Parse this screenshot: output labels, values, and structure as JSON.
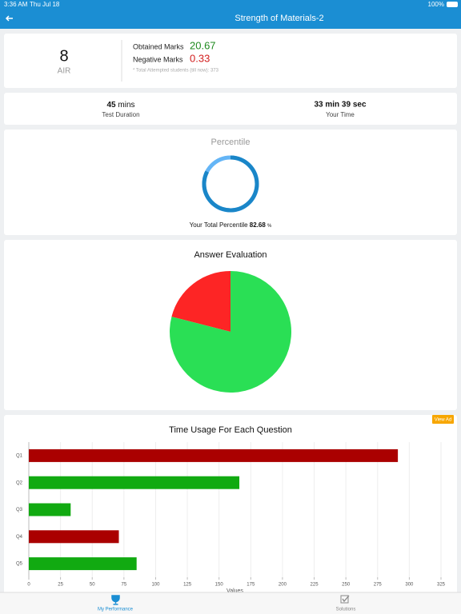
{
  "status_bar": {
    "time": "3:36 AM",
    "date": "Thu Jul 18",
    "battery": "100%"
  },
  "header": {
    "title": "Strength of Materials-2"
  },
  "score": {
    "rank": "8",
    "rank_label": "AIR",
    "obtained_label": "Obtained Marks",
    "obtained_value": "20.67",
    "negative_label": "Negative Marks",
    "negative_value": "0.33",
    "note": "* Total Attempted students (till now): 373"
  },
  "time": {
    "duration_value": "45",
    "duration_unit": "mins",
    "duration_label": "Test Duration",
    "your_time": "33 min 39 sec",
    "your_time_label": "Your Time"
  },
  "percentile": {
    "title": "Percentile",
    "label": "Your Total Percentile",
    "value": 82.68,
    "unit": "%",
    "color": "#1a86c8",
    "track_color": "#64b5f6"
  },
  "chart_data": [
    {
      "type": "pie",
      "title": "Answer Evaluation",
      "values": [
        21,
        79
      ],
      "colors": [
        "#fd2525",
        "#2adf55"
      ]
    },
    {
      "type": "bar",
      "orientation": "horizontal",
      "title": "Time Usage For Each Question",
      "categories": [
        "Q1",
        "Q2",
        "Q3",
        "Q4",
        "Q5"
      ],
      "values": [
        291,
        166,
        33,
        71,
        85
      ],
      "colors": [
        "#aa0000",
        "#11aa11",
        "#11aa11",
        "#aa0000",
        "#11aa11"
      ],
      "xlim": [
        0,
        325
      ],
      "xticks": [
        0,
        25,
        50,
        75,
        100,
        125,
        150,
        175,
        200,
        225,
        250,
        275,
        300,
        325
      ],
      "xlabel": "Values",
      "grid": true
    }
  ],
  "ad_button": "View Ad",
  "tabs": [
    {
      "label": "My Performance"
    },
    {
      "label": "Solutions"
    }
  ]
}
